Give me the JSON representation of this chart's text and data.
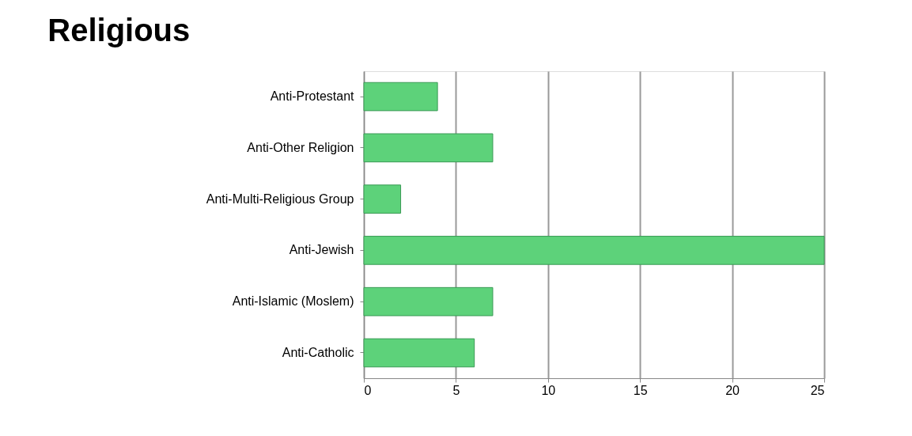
{
  "chart_data": {
    "type": "bar",
    "orientation": "horizontal",
    "title": "Religious",
    "categories": [
      "Anti-Protestant",
      "Anti-Other Religion",
      "Anti-Multi-Religious Group",
      "Anti-Jewish",
      "Anti-Islamic (Moslem)",
      "Anti-Catholic"
    ],
    "values": [
      4,
      7,
      2,
      25,
      7,
      6
    ],
    "color": "#5dd27a",
    "xlim": [
      0,
      25
    ],
    "xticks": [
      0,
      5,
      10,
      15,
      20,
      25
    ],
    "grid": "x"
  }
}
